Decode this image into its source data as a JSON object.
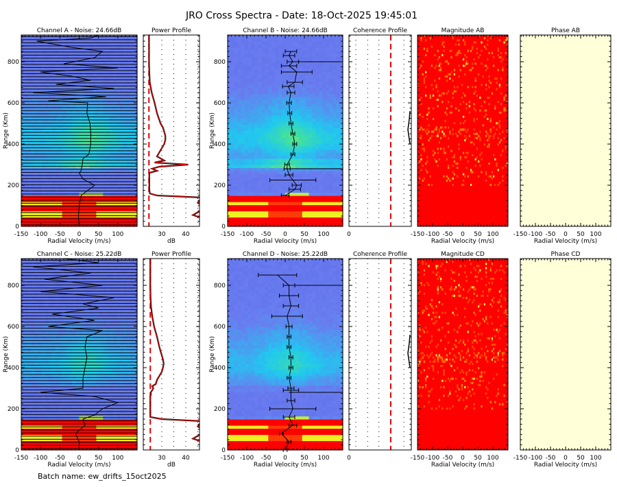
{
  "title": "JRO Cross Spectra - Date: 18-Oct-2025 19:45:01",
  "batch_label": "Batch name: ew_drifts_15oct2025",
  "colors": {
    "noise_blue": "#6a7cf0",
    "cyan": "#20c8f0",
    "yellow": "#f0f020",
    "red": "#ff0000",
    "phase_bg": "#ffffd8",
    "profile_line": "#cc0000"
  },
  "chart_data": [
    {
      "id": "spec_a",
      "type": "heatmap",
      "title": "Channel A - Noise: 24.66dB",
      "noise_db": 24.66,
      "xlabel": "Radial Velocity (m/s)",
      "ylabel": "Range (Km)",
      "xlim": [
        -150,
        150
      ],
      "ylim": [
        0,
        930
      ],
      "xticks": [
        "-150",
        "-100",
        "-50",
        "0",
        "50",
        "100"
      ],
      "yticks": [
        "0",
        "200",
        "400",
        "600",
        "800"
      ],
      "doppler": [
        [
          0,
          0
        ],
        [
          50,
          -2
        ],
        [
          100,
          0
        ],
        [
          150,
          5
        ],
        [
          200,
          40
        ],
        [
          230,
          10
        ],
        [
          260,
          0
        ],
        [
          270,
          5
        ],
        [
          300,
          8
        ],
        [
          330,
          10
        ],
        [
          350,
          25
        ],
        [
          400,
          30
        ],
        [
          450,
          30
        ],
        [
          500,
          28
        ],
        [
          550,
          20
        ],
        [
          600,
          22
        ],
        [
          610,
          -80
        ],
        [
          630,
          70
        ],
        [
          650,
          -120
        ],
        [
          670,
          90
        ],
        [
          690,
          -60
        ],
        [
          710,
          30
        ],
        [
          730,
          -20
        ],
        [
          750,
          -100
        ],
        [
          770,
          100
        ],
        [
          790,
          -40
        ],
        [
          820,
          40
        ],
        [
          850,
          60
        ],
        [
          870,
          -20
        ],
        [
          900,
          -110
        ],
        [
          915,
          30
        ],
        [
          930,
          50
        ]
      ]
    },
    {
      "id": "power_a",
      "type": "line",
      "title": "Power Profile",
      "xlabel": "dB",
      "xlim": [
        22.3,
        45.7
      ],
      "ylim": [
        0,
        930
      ],
      "xticks": [
        "30",
        "40"
      ],
      "noise_db": 24.66,
      "range": [
        0,
        20,
        40,
        55,
        80,
        100,
        115,
        140,
        150,
        160,
        180,
        200,
        230,
        260,
        270,
        280,
        290,
        300,
        310,
        320,
        340,
        360,
        380,
        400,
        420,
        440,
        460,
        480,
        500,
        550,
        600,
        650,
        700,
        750,
        800,
        850,
        900,
        930
      ],
      "db": [
        48,
        48,
        48,
        43,
        48,
        48,
        45,
        47,
        28,
        25,
        24.8,
        24.8,
        24.8,
        24.8,
        28,
        26,
        29,
        41,
        27,
        31,
        28,
        29,
        30,
        31,
        31.5,
        31.5,
        31,
        30.5,
        29.5,
        28,
        27,
        25.8,
        25,
        24.8,
        24.7,
        24.7,
        24.7,
        24.7
      ]
    },
    {
      "id": "spec_b",
      "type": "heatmap",
      "title": "Channel B - Noise: 24.66dB",
      "noise_db": 24.66,
      "xlabel": "Radial Velocity (m/s)",
      "ylabel": "Range (Km)",
      "xlim": [
        -150,
        150
      ],
      "ylim": [
        0,
        930
      ],
      "xticks": [
        "-150",
        "-100",
        "-50",
        "0",
        "50",
        "100"
      ],
      "yticks": [
        "0",
        "200",
        "400",
        "600",
        "800"
      ],
      "doppler": [
        [
          150,
          0
        ],
        [
          180,
          25
        ],
        [
          200,
          30
        ],
        [
          225,
          20
        ],
        [
          250,
          10
        ],
        [
          280,
          5
        ],
        [
          300,
          5
        ],
        [
          350,
          20
        ],
        [
          400,
          25
        ],
        [
          450,
          20
        ],
        [
          500,
          15
        ],
        [
          550,
          12
        ],
        [
          600,
          10
        ],
        [
          650,
          15
        ],
        [
          680,
          8
        ],
        [
          700,
          25
        ],
        [
          750,
          30
        ],
        [
          780,
          10
        ],
        [
          800,
          20
        ],
        [
          830,
          10
        ],
        [
          850,
          15
        ]
      ],
      "doppler_err": [
        10,
        15,
        12,
        60,
        10,
        8,
        6,
        5,
        5,
        5,
        5,
        5,
        6,
        10,
        15,
        20,
        40,
        20,
        15,
        15,
        15
      ]
    },
    {
      "id": "coh_ab",
      "type": "line",
      "title": "Coherence Profile",
      "xticks": [
        "0"
      ],
      "threshold_fraction": 0.67
    },
    {
      "id": "mag_ab",
      "type": "heatmap",
      "title": "Magnitude AB",
      "xlabel": "Radial Velocity (m/s)",
      "xlim": [
        -150,
        150
      ],
      "xticks": [
        "-150",
        "-100",
        "-50",
        "0",
        "50",
        "100"
      ]
    },
    {
      "id": "phase_ab",
      "type": "heatmap",
      "title": "Phase AB",
      "xlabel": "Radial Velocity (m/s)",
      "xlim": [
        -150,
        150
      ],
      "xticks": [
        "-150",
        "-100",
        "-50",
        "0",
        "50",
        "100"
      ]
    },
    {
      "id": "spec_c",
      "type": "heatmap",
      "title": "Channel C - Noise: 25.22dB",
      "noise_db": 25.22,
      "xlabel": "Radial Velocity (m/s)",
      "ylabel": "Range (Km)",
      "xlim": [
        -150,
        150
      ],
      "ylim": [
        0,
        930
      ],
      "xticks": [
        "-150",
        "-100",
        "-50",
        "0",
        "50",
        "100"
      ],
      "yticks": [
        "0",
        "200",
        "400",
        "600",
        "800"
      ],
      "doppler": [
        [
          0,
          0
        ],
        [
          40,
          0
        ],
        [
          80,
          -10
        ],
        [
          120,
          15
        ],
        [
          150,
          10
        ],
        [
          170,
          40
        ],
        [
          200,
          60
        ],
        [
          230,
          100
        ],
        [
          260,
          40
        ],
        [
          280,
          -100
        ],
        [
          300,
          10
        ],
        [
          350,
          10
        ],
        [
          400,
          15
        ],
        [
          450,
          20
        ],
        [
          500,
          15
        ],
        [
          550,
          20
        ],
        [
          580,
          60
        ],
        [
          600,
          -80
        ],
        [
          630,
          40
        ],
        [
          660,
          -70
        ],
        [
          690,
          50
        ],
        [
          710,
          10
        ],
        [
          740,
          90
        ],
        [
          770,
          -100
        ],
        [
          800,
          60
        ],
        [
          830,
          -90
        ],
        [
          860,
          30
        ],
        [
          890,
          -120
        ],
        [
          910,
          50
        ],
        [
          930,
          -40
        ]
      ]
    },
    {
      "id": "power_c",
      "type": "line",
      "title": "Power Profile",
      "xlabel": "dB",
      "xlim": [
        22.3,
        45.7
      ],
      "ylim": [
        0,
        930
      ],
      "xticks": [
        "30",
        "40"
      ],
      "noise_db": 25.22,
      "range": [
        0,
        20,
        40,
        55,
        80,
        100,
        115,
        140,
        150,
        160,
        180,
        200,
        230,
        260,
        270,
        280,
        290,
        300,
        310,
        320,
        340,
        360,
        380,
        400,
        420,
        440,
        460,
        480,
        500,
        550,
        600,
        650,
        700,
        750,
        800,
        850,
        900,
        930
      ],
      "db": [
        48,
        48,
        48,
        43,
        48,
        48,
        45,
        48,
        30,
        25.2,
        25.2,
        25.2,
        25.2,
        25.2,
        25.5,
        25.4,
        26,
        26.5,
        26,
        27.5,
        28,
        29,
        30,
        30.5,
        30.8,
        30.5,
        30,
        29.5,
        29,
        28,
        26.8,
        26,
        25.5,
        25.3,
        25.2,
        25.2,
        25.2,
        25.2
      ]
    },
    {
      "id": "spec_d",
      "type": "heatmap",
      "title": "Channel D - Noise: 25.22dB",
      "noise_db": 25.22,
      "xlabel": "Radial Velocity (m/s)",
      "ylabel": "Range (Km)",
      "xlim": [
        -150,
        150
      ],
      "ylim": [
        0,
        930
      ],
      "xticks": [
        "-150",
        "-100",
        "-50",
        "0",
        "50",
        "100"
      ],
      "yticks": [
        "0",
        "200",
        "400",
        "600",
        "800"
      ],
      "doppler": [
        [
          0,
          0
        ],
        [
          40,
          10
        ],
        [
          80,
          -10
        ],
        [
          120,
          20
        ],
        [
          160,
          10
        ],
        [
          200,
          20
        ],
        [
          240,
          15
        ],
        [
          290,
          15
        ],
        [
          300,
          15
        ],
        [
          350,
          10
        ],
        [
          400,
          15
        ],
        [
          450,
          15
        ],
        [
          500,
          10
        ],
        [
          550,
          10
        ],
        [
          600,
          10
        ],
        [
          650,
          5
        ],
        [
          700,
          15
        ],
        [
          750,
          10
        ],
        [
          800,
          10
        ],
        [
          850,
          -20
        ]
      ],
      "doppler_err": [
        5,
        5,
        5,
        10,
        15,
        60,
        10,
        20,
        8,
        5,
        5,
        5,
        5,
        5,
        8,
        40,
        20,
        25,
        15,
        50
      ]
    },
    {
      "id": "coh_cd",
      "type": "line",
      "title": "Coherence Profile",
      "xticks": [
        "0"
      ],
      "threshold_fraction": 0.67
    },
    {
      "id": "mag_cd",
      "type": "heatmap",
      "title": "Magnitude CD",
      "xlabel": "Radial Velocity (m/s)",
      "xlim": [
        -150,
        150
      ],
      "xticks": [
        "-150",
        "-100",
        "-50",
        "0",
        "50",
        "100"
      ]
    },
    {
      "id": "phase_cd",
      "type": "heatmap",
      "title": "Phase CD",
      "xlabel": "Radial Velocity (m/s)",
      "xlim": [
        -150,
        150
      ],
      "xticks": [
        "-150",
        "-100",
        "-50",
        "0",
        "50",
        "100"
      ]
    }
  ]
}
